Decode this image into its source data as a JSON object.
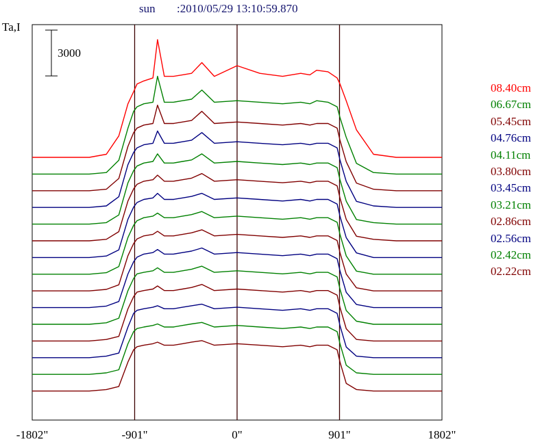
{
  "header": {
    "object": "sun",
    "timestamp": ":2010/05/29 13:10:59.870"
  },
  "y_label": "Ta,I",
  "scale_bar_label": "3000",
  "x_ticks": [
    "-1802\"",
    "-901\"",
    "0\"",
    "901\"",
    "1802\""
  ],
  "legend": [
    {
      "label": "08.40cm",
      "color": "#ff0000"
    },
    {
      "label": "06.67cm",
      "color": "#008000"
    },
    {
      "label": "05.45cm",
      "color": "#800000"
    },
    {
      "label": "04.76cm",
      "color": "#000080"
    },
    {
      "label": "04.11cm",
      "color": "#008000"
    },
    {
      "label": "03.80cm",
      "color": "#800000"
    },
    {
      "label": "03.45cm",
      "color": "#000080"
    },
    {
      "label": "03.21cm",
      "color": "#008000"
    },
    {
      "label": "02.86cm",
      "color": "#800000"
    },
    {
      "label": "02.56cm",
      "color": "#000080"
    },
    {
      "label": "02.42cm",
      "color": "#008000"
    },
    {
      "label": "02.22cm",
      "color": "#800000"
    }
  ],
  "chart_data": {
    "type": "line",
    "xlabel": "",
    "ylabel": "Ta,I",
    "xlim": [
      -1802,
      1802
    ],
    "x_tick_values": [
      -1802,
      -901,
      0,
      901,
      1802
    ],
    "vertical_lines": [
      -901,
      0,
      901
    ],
    "scale_bar_value": 3000,
    "grid": false,
    "legend_placement": "right",
    "x": [
      -1802,
      -1300,
      -1150,
      -1040,
      -960,
      -910,
      -880,
      -820,
      -740,
      -700,
      -640,
      -560,
      -480,
      -400,
      -310,
      -200,
      0,
      200,
      400,
      560,
      640,
      700,
      800,
      880,
      905,
      960,
      1050,
      1200,
      1400,
      1802
    ],
    "series_colors": [
      "#ff0000",
      "#008000",
      "#800000",
      "#000080",
      "#008000",
      "#800000",
      "#000080",
      "#008000",
      "#800000",
      "#000080",
      "#008000",
      "#800000",
      "#000080",
      "#008000",
      "#800000"
    ],
    "series": [
      {
        "name": "08.40cm",
        "values": [
          0,
          0,
          200,
          1400,
          3500,
          4300,
          4800,
          5000,
          5200,
          7700,
          5300,
          5300,
          5400,
          5500,
          6200,
          5300,
          6000,
          5500,
          5300,
          5500,
          5400,
          5700,
          5600,
          5200,
          4800,
          3700,
          1800,
          200,
          0,
          0
        ]
      },
      {
        "name": "06.67cm",
        "values": [
          0,
          0,
          100,
          900,
          3000,
          4100,
          4400,
          4600,
          4700,
          6400,
          4700,
          4700,
          4800,
          4900,
          5500,
          4700,
          4800,
          4700,
          4600,
          4700,
          4600,
          4800,
          4700,
          4400,
          3700,
          2400,
          700,
          100,
          0,
          0
        ]
      },
      {
        "name": "05.45cm",
        "values": [
          0,
          0,
          100,
          800,
          2900,
          3800,
          4100,
          4300,
          4400,
          5600,
          4400,
          4400,
          4500,
          4600,
          5200,
          4400,
          4500,
          4400,
          4300,
          4400,
          4300,
          4400,
          4400,
          4100,
          3300,
          1900,
          500,
          100,
          0,
          0
        ]
      },
      {
        "name": "04.76cm",
        "values": [
          0,
          0,
          100,
          700,
          2800,
          3600,
          3900,
          4100,
          4200,
          5000,
          4200,
          4200,
          4300,
          4400,
          4900,
          4200,
          4300,
          4200,
          4100,
          4200,
          4100,
          4200,
          4200,
          3900,
          3100,
          1700,
          400,
          100,
          0,
          0
        ]
      },
      {
        "name": "04.11cm",
        "values": [
          0,
          0,
          100,
          600,
          2700,
          3500,
          3800,
          4000,
          4100,
          4600,
          4000,
          4000,
          4100,
          4200,
          4600,
          4000,
          4100,
          4000,
          3900,
          4000,
          3900,
          4000,
          4000,
          3700,
          2900,
          1500,
          300,
          100,
          0,
          0
        ]
      },
      {
        "name": "03.80cm",
        "values": [
          0,
          0,
          100,
          600,
          2600,
          3400,
          3700,
          3900,
          4000,
          4300,
          3900,
          3900,
          4000,
          4100,
          4400,
          3900,
          4000,
          3900,
          3800,
          3900,
          3800,
          3900,
          3900,
          3600,
          2800,
          1400,
          300,
          100,
          0,
          0
        ]
      },
      {
        "name": "03.45cm",
        "values": [
          0,
          0,
          100,
          500,
          2500,
          3300,
          3600,
          3800,
          3900,
          4200,
          3800,
          3800,
          3900,
          4000,
          4200,
          3800,
          3900,
          3800,
          3700,
          3800,
          3700,
          3800,
          3800,
          3500,
          2700,
          1300,
          300,
          0,
          0,
          0
        ]
      },
      {
        "name": "03.21cm",
        "values": [
          0,
          0,
          100,
          500,
          2400,
          3200,
          3500,
          3700,
          3800,
          4000,
          3700,
          3700,
          3800,
          3900,
          4100,
          3700,
          3800,
          3700,
          3600,
          3700,
          3600,
          3700,
          3700,
          3400,
          2600,
          1200,
          200,
          0,
          0,
          0
        ]
      },
      {
        "name": "02.86cm",
        "values": [
          0,
          0,
          100,
          400,
          2300,
          3100,
          3400,
          3600,
          3700,
          3900,
          3600,
          3600,
          3700,
          3800,
          4000,
          3600,
          3700,
          3600,
          3500,
          3600,
          3500,
          3600,
          3600,
          3300,
          2500,
          1100,
          200,
          0,
          0,
          0
        ]
      },
      {
        "name": "02.56cm",
        "values": [
          0,
          0,
          100,
          400,
          2200,
          3000,
          3300,
          3500,
          3600,
          3800,
          3500,
          3500,
          3600,
          3700,
          3900,
          3500,
          3600,
          3500,
          3400,
          3500,
          3400,
          3500,
          3500,
          3200,
          2400,
          1000,
          200,
          0,
          0,
          0
        ]
      },
      {
        "name": "02.42cm",
        "values": [
          0,
          0,
          100,
          400,
          2200,
          3000,
          3300,
          3400,
          3500,
          3700,
          3400,
          3400,
          3500,
          3600,
          3800,
          3400,
          3500,
          3400,
          3300,
          3400,
          3300,
          3400,
          3400,
          3100,
          2300,
          900,
          200,
          0,
          0,
          0
        ]
      },
      {
        "name": "02.22cm",
        "values": [
          0,
          0,
          100,
          300,
          2100,
          2900,
          3200,
          3300,
          3400,
          3600,
          3300,
          3300,
          3400,
          3500,
          3700,
          3300,
          3400,
          3300,
          3200,
          3300,
          3200,
          3300,
          3300,
          3000,
          2200,
          800,
          100,
          0,
          0,
          0
        ]
      },
      {
        "values": [
          0,
          0,
          100,
          300,
          2000,
          2900,
          3100,
          3200,
          3300,
          3400,
          3200,
          3200,
          3300,
          3400,
          3500,
          3200,
          3300,
          3200,
          3100,
          3200,
          3100,
          3200,
          3200,
          2900,
          2100,
          700,
          100,
          0,
          0,
          0
        ]
      },
      {
        "values": [
          0,
          0,
          100,
          300,
          2000,
          2800,
          3000,
          3100,
          3200,
          3300,
          3100,
          3100,
          3200,
          3300,
          3400,
          3100,
          3200,
          3100,
          3000,
          3100,
          3000,
          3100,
          3100,
          2800,
          2000,
          600,
          100,
          0,
          0,
          0
        ]
      },
      {
        "values": [
          0,
          0,
          100,
          300,
          1900,
          2700,
          2900,
          3000,
          3100,
          3200,
          3000,
          3000,
          3100,
          3200,
          3300,
          3000,
          3100,
          3000,
          2900,
          3000,
          2900,
          3000,
          3000,
          2700,
          1900,
          500,
          100,
          0,
          0,
          0
        ]
      }
    ]
  }
}
